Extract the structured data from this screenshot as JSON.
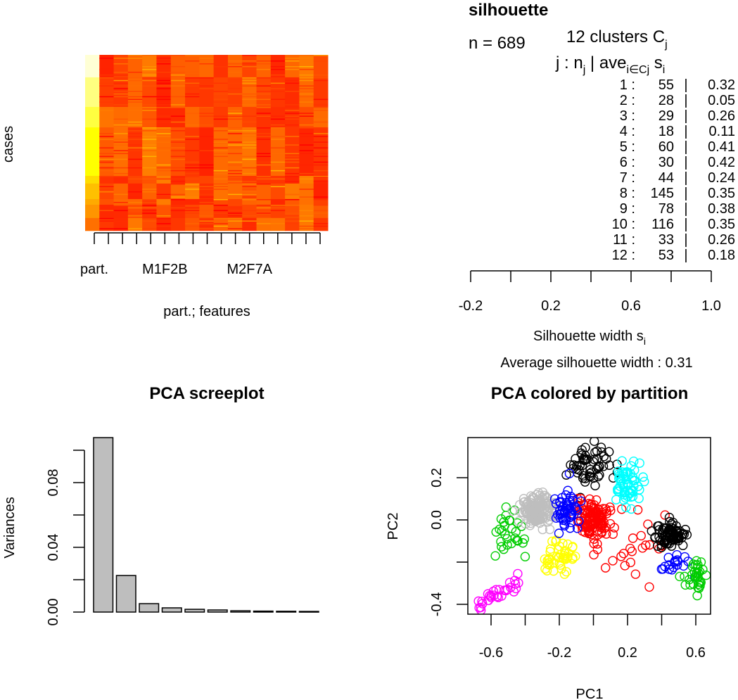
{
  "chart_data": [
    {
      "type": "heatmap",
      "ylabel": "cases",
      "xlabel": "part.; features",
      "tick_labels": [
        "part.",
        "M1F2B",
        "M2F7A"
      ],
      "tick_label_columns": [
        1,
        6,
        12
      ],
      "n_columns": 17,
      "palette": [
        "#FF0000",
        "#FF4000",
        "#FF8000",
        "#FFC000",
        "#FFFF00",
        "#FFFFD5"
      ],
      "partition_groups": [
        {
          "color": "#FFFFD5",
          "cases": 88
        },
        {
          "color": "#FFFF80",
          "cases": 116
        },
        {
          "color": "#FFFF40",
          "cases": 80
        },
        {
          "color": "#FFFF00",
          "cases": 190
        },
        {
          "color": "#FFDD00",
          "cases": 30
        },
        {
          "color": "#FFC000",
          "cases": 61
        },
        {
          "color": "#FFAA00",
          "cases": 22
        },
        {
          "color": "#FF9500",
          "cases": 52
        },
        {
          "color": "#FF7000",
          "cases": 50
        }
      ]
    },
    {
      "type": "bar",
      "title": "silhouette",
      "n_label": "n = 689",
      "clusters_label": "12  clusters  C",
      "clusters_sub": "j",
      "header": {
        "j": "j :  n",
        "j_sub": "j",
        "sep": " | ave",
        "ave_sub": "i∈Cj",
        "s": "  s",
        "s_sub": "i"
      },
      "rows": [
        {
          "j": "1 :",
          "n": "55",
          "ave": "0.32"
        },
        {
          "j": "2 :",
          "n": "28",
          "ave": "0.05"
        },
        {
          "j": "3 :",
          "n": "29",
          "ave": "0.26"
        },
        {
          "j": "4 :",
          "n": "18",
          "ave": "0.11"
        },
        {
          "j": "5 :",
          "n": "60",
          "ave": "0.41"
        },
        {
          "j": "6 :",
          "n": "30",
          "ave": "0.42"
        },
        {
          "j": "7 :",
          "n": "44",
          "ave": "0.24"
        },
        {
          "j": "8 :",
          "n": "145",
          "ave": "0.35"
        },
        {
          "j": "9 :",
          "n": "78",
          "ave": "0.38"
        },
        {
          "j": "10 :",
          "n": "116",
          "ave": "0.35"
        },
        {
          "j": "11 :",
          "n": "33",
          "ave": "0.26"
        },
        {
          "j": "12 :",
          "n": "53",
          "ave": "0.18"
        }
      ],
      "xlabel": "Silhouette width s",
      "xlabel_sub": "i",
      "xlim": [
        -0.2,
        1.0
      ],
      "x_ticks": [
        -0.2,
        0.0,
        0.2,
        0.4,
        0.6,
        0.8,
        1.0
      ],
      "x_tick_labels": [
        "-0.2",
        "",
        "0.2",
        "",
        "0.6",
        "",
        "1.0"
      ],
      "average_label": "Average silhouette width :  0.31"
    },
    {
      "type": "bar",
      "title": "PCA screeplot",
      "ylabel": "Variances",
      "values": [
        0.1078,
        0.0226,
        0.0052,
        0.0026,
        0.0017,
        0.0013,
        0.0008,
        0.0006,
        0.0005,
        0.0004
      ],
      "ylim": [
        0,
        0.1
      ],
      "y_ticks": [
        0,
        0.02,
        0.04,
        0.06,
        0.08,
        0.1
      ],
      "y_tick_labels": [
        "0.00",
        "",
        "0.04",
        "",
        "0.08",
        ""
      ],
      "bar_color": "#BEBEBE"
    },
    {
      "type": "scatter",
      "title": "PCA colored by partition",
      "xlabel": "PC1",
      "ylabel": "PC2",
      "xlim": [
        -0.73,
        0.69
      ],
      "ylim": [
        -0.445,
        0.39
      ],
      "x_ticks": [
        -0.6,
        -0.4,
        -0.2,
        0.0,
        0.2,
        0.4,
        0.6
      ],
      "x_tick_labels": [
        "-0.6",
        "",
        "-0.2",
        "",
        "0.2",
        "",
        "0.6"
      ],
      "y_ticks": [
        -0.4,
        -0.2,
        0.0,
        0.2
      ],
      "y_tick_labels": [
        "-0.4",
        "",
        "0.0",
        "0.2"
      ],
      "clusters": [
        {
          "cluster": 1,
          "color": "#000000",
          "n": 55,
          "center": [
            -0.03,
            0.27
          ],
          "sd": [
            0.07,
            0.05
          ]
        },
        {
          "cluster": 2,
          "color": "#FF0000",
          "n": 28,
          "center": [
            0.2,
            -0.12
          ],
          "sd": [
            0.12,
            0.09
          ]
        },
        {
          "cluster": 3,
          "color": "#00CD00",
          "n": 29,
          "center": [
            -0.5,
            -0.07
          ],
          "sd": [
            0.05,
            0.06
          ]
        },
        {
          "cluster": 4,
          "color": "#0000FF",
          "n": 18,
          "center": [
            0.49,
            -0.2
          ],
          "sd": [
            0.04,
            0.03
          ]
        },
        {
          "cluster": 5,
          "color": "#00FFFF",
          "n": 60,
          "center": [
            0.2,
            0.18
          ],
          "sd": [
            0.05,
            0.05
          ]
        },
        {
          "cluster": 6,
          "color": "#FF00FF",
          "n": 30,
          "from": [
            -0.69,
            -0.41
          ],
          "to": [
            -0.45,
            -0.29
          ],
          "sd": [
            0.02,
            0.015
          ]
        },
        {
          "cluster": 7,
          "color": "#FFFF00",
          "n": 44,
          "center": [
            -0.2,
            -0.18
          ],
          "sd": [
            0.05,
            0.05
          ]
        },
        {
          "cluster": 8,
          "color": "#BEBEBE",
          "n": 145,
          "center": [
            -0.33,
            0.04
          ],
          "sd": [
            0.05,
            0.04
          ]
        },
        {
          "cluster": 9,
          "color": "#000000",
          "n": 78,
          "center": [
            0.45,
            -0.07
          ],
          "sd": [
            0.04,
            0.03
          ]
        },
        {
          "cluster": 10,
          "color": "#FF0000",
          "n": 116,
          "center": [
            0.0,
            0.0
          ],
          "sd": [
            0.05,
            0.045
          ]
        },
        {
          "cluster": 11,
          "color": "#00CD00",
          "n": 33,
          "center": [
            0.6,
            -0.27
          ],
          "sd": [
            0.03,
            0.04
          ]
        },
        {
          "cluster": 12,
          "color": "#0000FF",
          "n": 53,
          "center": [
            -0.16,
            0.05
          ],
          "sd": [
            0.04,
            0.05
          ]
        }
      ]
    }
  ]
}
